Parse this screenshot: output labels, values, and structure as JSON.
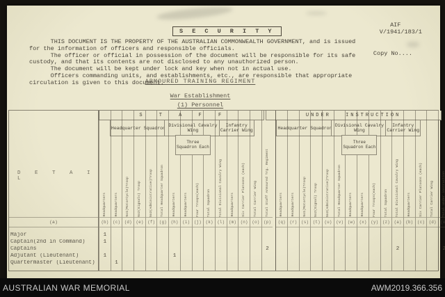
{
  "doc": {
    "ref_line1": "   AIF",
    "ref_line2": "V/1941/183/1",
    "copy_no": "Copy No....",
    "security_title": "S E C U R I T Y",
    "security_lines": [
      "      THIS DOCUMENT IS THE PROPERTY OF THE AUSTRALIAN COMMONWEALTH GOVERNMENT, and is issued",
      "for the information of officers and responsible officials.",
      "      The officer or official in possession of the document will be responsible for its safe",
      "custody, and that its contents are not disclosed to any unauthorized person.",
      "      The document will be kept under lock and key when not in actual use.",
      "      Officers commanding units, and establishments, etc., are responsible that appropriate",
      "circulation is given to this document.",
      ""
    ],
    "title": "ARMOURED TRAINING REGIMENT",
    "subtitle": "War Establishment",
    "section": "(1) Personnel"
  },
  "table": {
    "detail_header": "D E T A I L",
    "detail_letter": "(a)",
    "gap_after": 14,
    "bands": [
      {
        "row": "top",
        "start": 0,
        "end": 14,
        "label": "S T A F F"
      },
      {
        "row": "top",
        "start": 15,
        "end": 30,
        "label": "UNDER INSTRUCTION"
      },
      {
        "row": "mid",
        "start": 1,
        "end": 5,
        "label": "Headquarter Squadron"
      },
      {
        "row": "mid",
        "start": 6,
        "end": 10,
        "label": "Divisional Cavalry Wing"
      },
      {
        "row": "mid",
        "start": 11,
        "end": 13,
        "label": "Infantry Carrier Wing"
      },
      {
        "row": "mid",
        "start": 16,
        "end": 20,
        "label": "Headquarter Squadron"
      },
      {
        "row": "mid",
        "start": 21,
        "end": 25,
        "label": "Divisional Cavalry Wing"
      },
      {
        "row": "mid",
        "start": 26,
        "end": 28,
        "label": "Infantry Carrier Wing"
      },
      {
        "row": "sub",
        "start": 7,
        "end": 9,
        "label": "Three Squadron Each"
      },
      {
        "row": "sub",
        "start": 22,
        "end": 24,
        "label": "Three Squadron Each"
      }
    ],
    "columns": [
      {
        "letter": "(b)",
        "label": "Headquarters"
      },
      {
        "letter": "(c)",
        "label": "Headquarters"
      },
      {
        "letter": "(d)",
        "label": "No1(MotorCycle)Troop"
      },
      {
        "letter": "(e)",
        "label": "No2(Signals) Troop"
      },
      {
        "letter": "(f)",
        "label": "No3(Administrative)Troop"
      },
      {
        "letter": "(g)",
        "label": "Total Headquarter Squadron"
      },
      {
        "letter": "(h)",
        "label": "Headquarters"
      },
      {
        "letter": "(i)",
        "label": "Headquarters"
      },
      {
        "letter": "(j)",
        "label": "Four Troops(each)"
      },
      {
        "letter": "(k)",
        "label": "Total Squadron"
      },
      {
        "letter": "(l)",
        "label": "Total Divisional Cavalry Wing"
      },
      {
        "letter": "(m)",
        "label": "Headquarters"
      },
      {
        "letter": "(n)",
        "label": "Six Carrier Platoons (each)"
      },
      {
        "letter": "(o)",
        "label": "Total Carrier Wing"
      },
      {
        "letter": "(p)",
        "label": "Total Staff Armoured Trg. Regiment"
      },
      {
        "letter": "(q)",
        "label": "Headquarters"
      },
      {
        "letter": "(r)",
        "label": "Headquarters"
      },
      {
        "letter": "(s)",
        "label": "No1(MotorCycle)Troop"
      },
      {
        "letter": "(t)",
        "label": "No2(Signal) Troop"
      },
      {
        "letter": "(u)",
        "label": "No3(Administrative)Troop"
      },
      {
        "letter": "(v)",
        "label": "Total Headquarter Squadron"
      },
      {
        "letter": "(w)",
        "label": "Headquarters"
      },
      {
        "letter": "(x)",
        "label": "Headquarters"
      },
      {
        "letter": "(y)",
        "label": "Four Troops(each)"
      },
      {
        "letter": "(z)",
        "label": "Total Squadron"
      },
      {
        "letter": "(a)",
        "label": "Total Divisional Cavalry Wing"
      },
      {
        "letter": "(b)",
        "label": "Headquarters"
      },
      {
        "letter": "(c)",
        "label": "Six Carrier Platoons (each)"
      },
      {
        "letter": "(d)",
        "label": "Total Carrier Wing"
      },
      {
        "letter": "(e)",
        "label": "Total under instruction"
      },
      {
        "letter": "(g)",
        "label": "Total armoured training Regiment."
      }
    ],
    "rows": [
      {
        "label": "Major",
        "values": [
          "1",
          "",
          "",
          "",
          "",
          "",
          "",
          "",
          "",
          "",
          "",
          "",
          "",
          "",
          "",
          "",
          "",
          "",
          "",
          "",
          "",
          "",
          "",
          "",
          "",
          "",
          "",
          "",
          "",
          "",
          "1"
        ]
      },
      {
        "label": "Captain(2nd in Command)",
        "values": [
          "1",
          "",
          "",
          "",
          "",
          "",
          "",
          "",
          "",
          "",
          "",
          "",
          "",
          "",
          "",
          "",
          "",
          "",
          "",
          "",
          "",
          "",
          "",
          "",
          "",
          "",
          "",
          "",
          "",
          "",
          "1"
        ]
      },
      {
        "label": "Captains",
        "values": [
          "",
          "",
          "",
          "",
          "",
          "",
          "",
          "",
          "",
          "",
          "",
          "",
          "",
          "",
          "2",
          "",
          "",
          "",
          "",
          "",
          "",
          "",
          "",
          "",
          "",
          "2",
          "",
          "",
          "",
          "2",
          "3"
        ]
      },
      {
        "label": "Adjutant (Lieutenant)",
        "values": [
          "1",
          "",
          "",
          "",
          "",
          "",
          "1",
          "",
          "",
          "",
          "",
          "",
          "",
          "",
          "",
          "",
          "",
          "",
          "",
          "",
          "",
          "",
          "",
          "",
          "",
          "",
          "",
          "",
          "",
          "",
          "1"
        ]
      },
      {
        "label": "Quartermaster (Lieutenant)",
        "values": [
          "",
          "1",
          "",
          "",
          "",
          "",
          "",
          "",
          "",
          "",
          "",
          "",
          "",
          "",
          "",
          "",
          "",
          "",
          "",
          "",
          "",
          "",
          "",
          "",
          "",
          "",
          "",
          "",
          "",
          "",
          "1"
        ]
      }
    ]
  },
  "footer": {
    "left": "AUSTRALIAN WAR MEMORIAL",
    "right": "AWM2019.366.356"
  }
}
